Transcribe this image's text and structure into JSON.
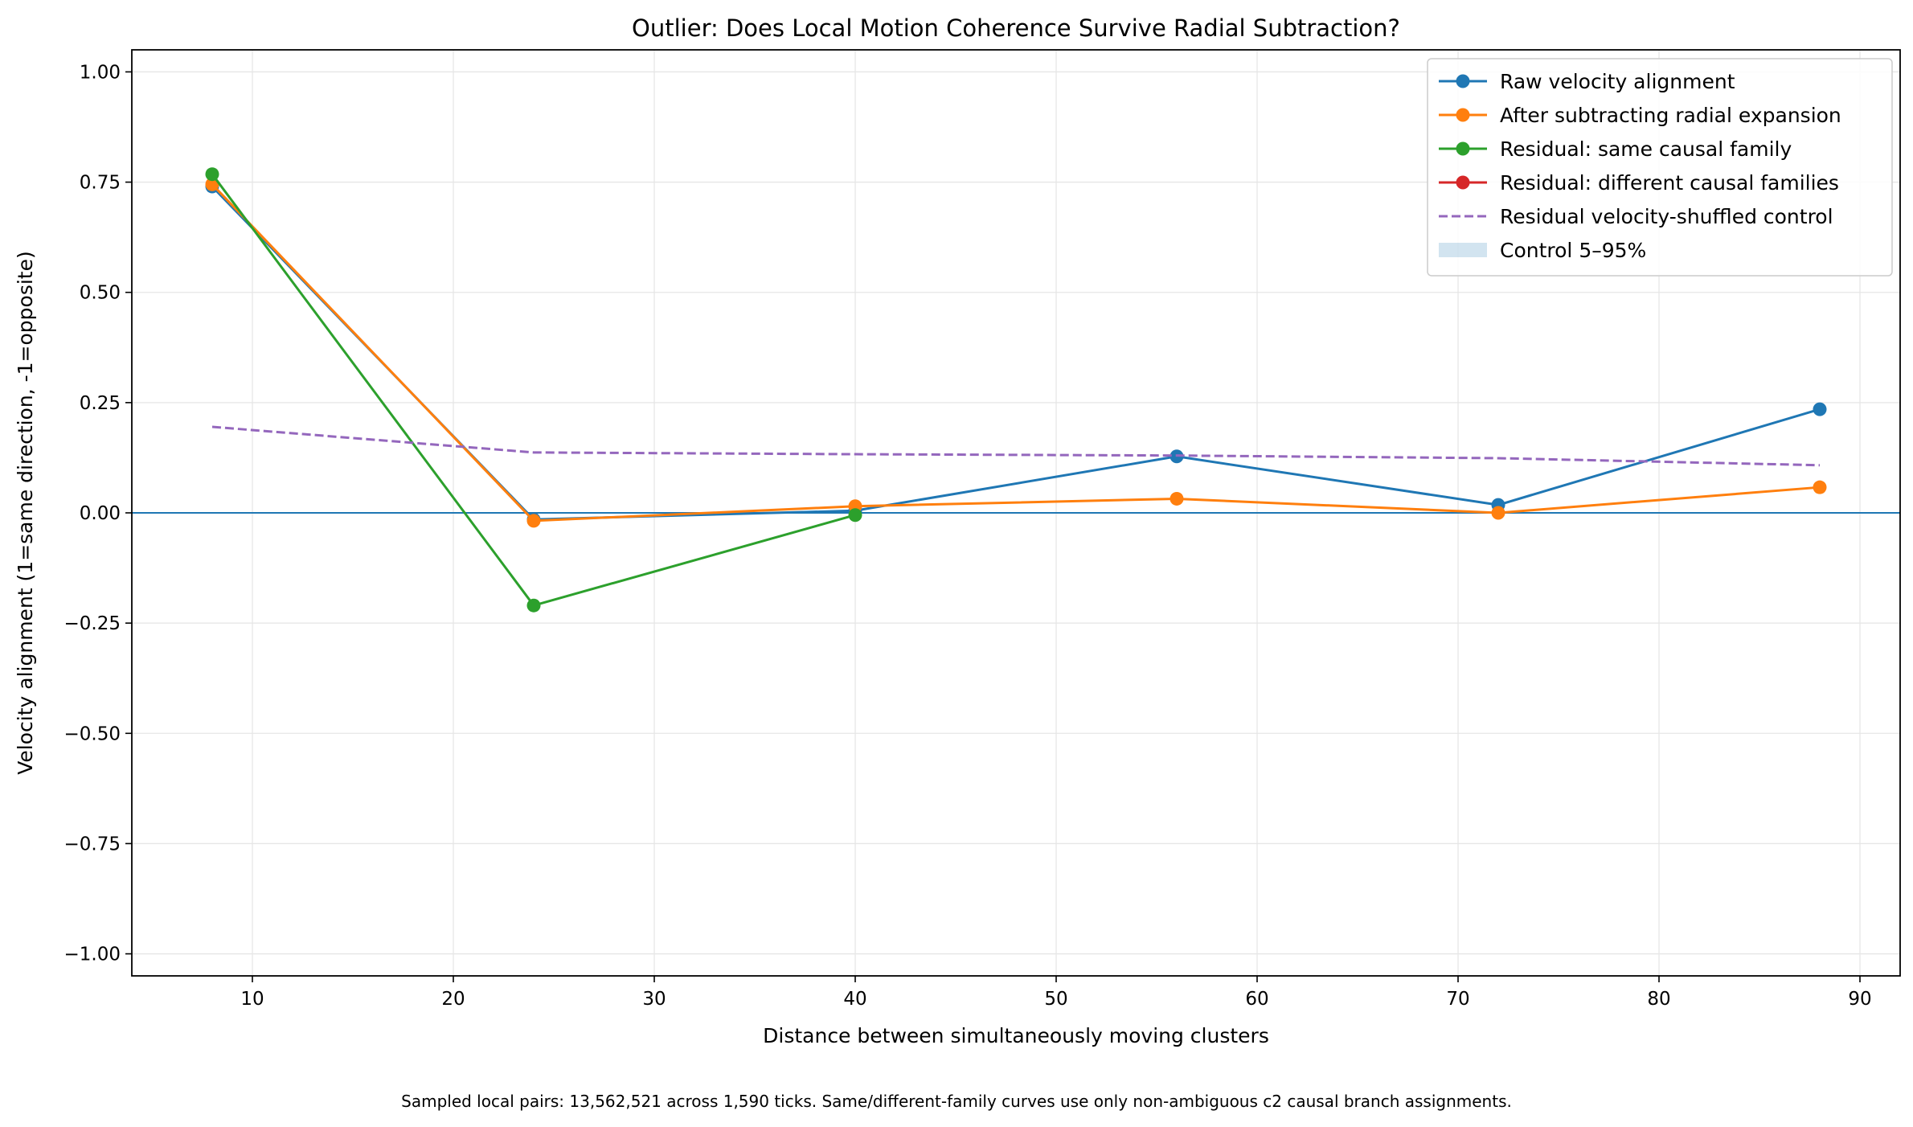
{
  "chart_data": {
    "type": "line",
    "title": "Outlier: Does Local Motion Coherence Survive Radial Subtraction?",
    "xlabel": "Distance between simultaneously moving clusters",
    "ylabel": "Velocity alignment (1=same direction, -1=opposite)",
    "xlim": [
      4,
      92
    ],
    "ylim": [
      -1.05,
      1.05
    ],
    "xticks": [
      10,
      20,
      30,
      40,
      50,
      60,
      70,
      80,
      90
    ],
    "yticks": [
      -1.0,
      -0.75,
      -0.5,
      -0.25,
      0.0,
      0.25,
      0.5,
      0.75,
      1.0
    ],
    "xtick_labels": [
      "10",
      "20",
      "30",
      "40",
      "50",
      "60",
      "70",
      "80",
      "90"
    ],
    "ytick_labels": [
      "−1.00",
      "−0.75",
      "−0.50",
      "−0.25",
      "0.00",
      "0.25",
      "0.50",
      "0.75",
      "1.00"
    ],
    "grid": true,
    "legend_position": "top-right",
    "reference_line": {
      "y": 0.0,
      "color": "#1f77b4"
    },
    "series": [
      {
        "name": "Raw velocity alignment",
        "style": "line-marker",
        "color": "#1f77b4",
        "x": [
          8,
          24,
          40,
          56,
          72,
          88
        ],
        "y": [
          0.74,
          -0.015,
          0.005,
          0.128,
          0.018,
          0.235
        ]
      },
      {
        "name": "After subtracting radial expansion",
        "style": "line-marker",
        "color": "#ff7f0e",
        "x": [
          8,
          24,
          40,
          56,
          72,
          88
        ],
        "y": [
          0.745,
          -0.018,
          0.015,
          0.032,
          0.0,
          0.058
        ]
      },
      {
        "name": "Residual: same causal family",
        "style": "line-marker",
        "color": "#2ca02c",
        "x": [
          8,
          24,
          40
        ],
        "y": [
          0.768,
          -0.21,
          -0.005
        ]
      },
      {
        "name": "Residual: different causal families",
        "style": "line-marker",
        "color": "#d62728",
        "x": [],
        "y": []
      },
      {
        "name": "Residual velocity-shuffled control",
        "style": "dashed",
        "color": "#9467bd",
        "x": [
          8,
          24,
          40,
          56,
          72,
          88
        ],
        "y": [
          0.195,
          0.137,
          0.133,
          0.13,
          0.124,
          0.108
        ]
      },
      {
        "name": "Control 5–95%",
        "style": "band",
        "color": "#1f77b4",
        "opacity": 0.2,
        "x": [],
        "lower": [],
        "upper": []
      }
    ],
    "footnote": "Sampled local pairs: 13,562,521 across 1,590 ticks. Same/different-family curves use only non-ambiguous c2 causal branch assignments."
  }
}
